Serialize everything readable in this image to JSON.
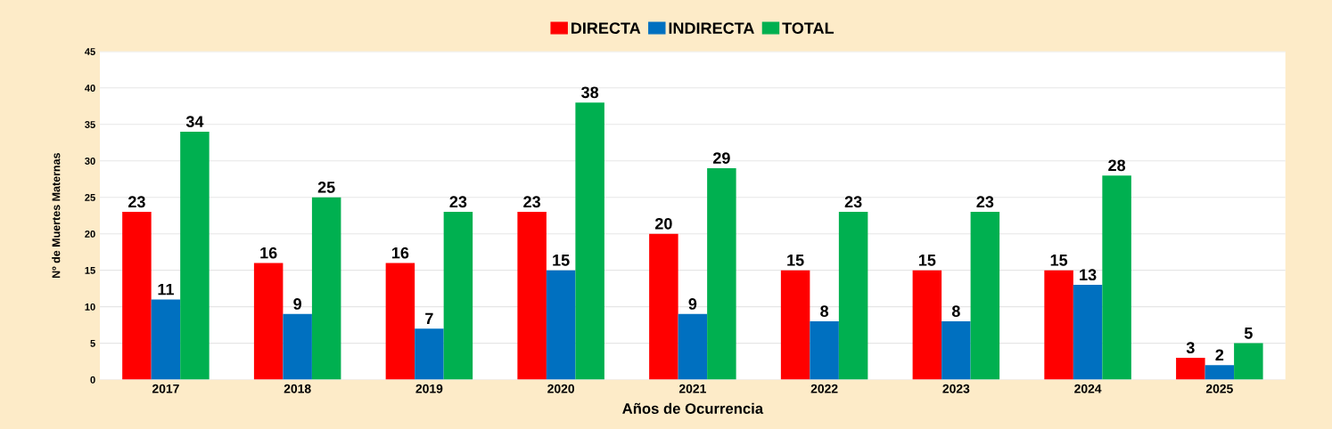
{
  "chart_data": {
    "type": "bar",
    "xlabel": "Años de Ocurrencia",
    "ylabel": "Nº de Muertes Maternas",
    "categories": [
      "2017",
      "2018",
      "2019",
      "2020",
      "2021",
      "2022",
      "2023",
      "2024",
      "2025"
    ],
    "series": [
      {
        "name": "DIRECTA",
        "color": "#ff0000",
        "values": [
          23,
          16,
          16,
          23,
          20,
          15,
          15,
          15,
          3
        ]
      },
      {
        "name": "INDIRECTA",
        "color": "#0070c0",
        "values": [
          11,
          9,
          7,
          15,
          9,
          8,
          8,
          13,
          2
        ]
      },
      {
        "name": "TOTAL",
        "color": "#00b050",
        "values": [
          34,
          25,
          23,
          38,
          29,
          23,
          23,
          28,
          5
        ]
      }
    ],
    "ylim": [
      0,
      45
    ],
    "yticks": [
      0,
      5,
      10,
      15,
      20,
      25,
      30,
      35,
      40,
      45
    ],
    "grid": "y",
    "legend": "top",
    "data_labels": true
  }
}
